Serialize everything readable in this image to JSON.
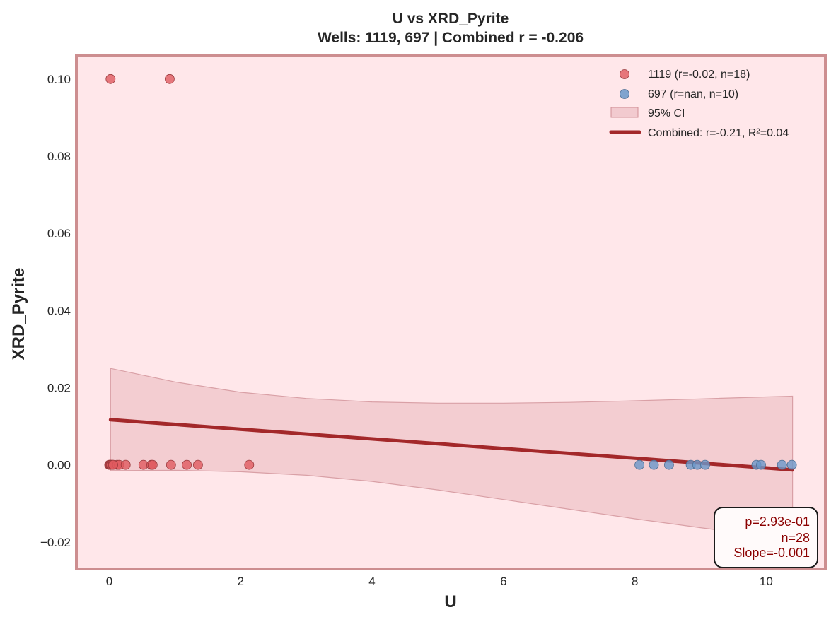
{
  "chart_data": {
    "type": "scatter",
    "title": "U vs XRD_Pyrite",
    "subtitle": "Wells: 1119, 697 | Combined r = -0.206",
    "xlabel": "U",
    "ylabel": "XRD_Pyrite",
    "xlim": [
      -0.5,
      10.9
    ],
    "ylim": [
      -0.027,
      0.106
    ],
    "xticks": [
      0,
      2,
      4,
      6,
      8,
      10
    ],
    "yticks": [
      -0.02,
      0.0,
      0.02,
      0.04,
      0.06,
      0.08,
      0.1
    ],
    "ytick_labels": [
      "−0.02",
      "0.00",
      "0.02",
      "0.04",
      "0.06",
      "0.08",
      "0.10"
    ],
    "grid": false,
    "legend_position": "top-right",
    "series": [
      {
        "name": "1119 (r=-0.02, n=18)",
        "color": "#e05a5f",
        "x": [
          0.0,
          0.01,
          0.02,
          0.03,
          0.05,
          0.12,
          0.15,
          0.25,
          0.52,
          0.64,
          0.66,
          0.94,
          1.18,
          1.35,
          2.13,
          0.02,
          0.92,
          0.06
        ],
        "y": [
          0.0,
          0.0,
          0.0,
          0.0,
          0.0,
          0.0,
          0.0,
          0.0,
          0.0,
          0.0,
          0.0,
          0.0,
          0.0,
          0.0,
          0.0,
          0.1,
          0.1,
          0.0
        ]
      },
      {
        "name": "697 (r=nan, n=10)",
        "color": "#6a97c9",
        "x": [
          8.07,
          8.29,
          8.52,
          8.85,
          8.95,
          9.07,
          9.85,
          9.92,
          10.24,
          10.39
        ],
        "y": [
          0.0,
          0.0,
          0.0,
          0.0,
          0.0,
          0.0,
          0.0,
          0.0,
          0.0,
          0.0
        ]
      }
    ],
    "ci": {
      "name": "95% CI",
      "color": "#e8b3b8",
      "x": [
        0.02,
        1,
        2,
        3,
        4,
        5,
        6,
        7,
        8,
        9,
        10,
        10.4
      ],
      "upper": [
        0.025,
        0.0215,
        0.0188,
        0.0172,
        0.0163,
        0.016,
        0.016,
        0.0162,
        0.0166,
        0.0171,
        0.0176,
        0.0178
      ],
      "lower": [
        -0.0015,
        -0.0014,
        -0.0018,
        -0.0027,
        -0.0043,
        -0.0065,
        -0.009,
        -0.0115,
        -0.014,
        -0.0163,
        -0.0186,
        -0.0195
      ]
    },
    "regression": {
      "name": "Combined: r=-0.21, R²=0.04",
      "color": "#a3282a",
      "x": [
        0.02,
        10.4
      ],
      "y": [
        0.0117,
        -0.0013
      ]
    },
    "stats": {
      "lines": [
        "p=2.93e-01",
        "n=28",
        "Slope=-0.001"
      ],
      "color": "#8b0000"
    }
  }
}
